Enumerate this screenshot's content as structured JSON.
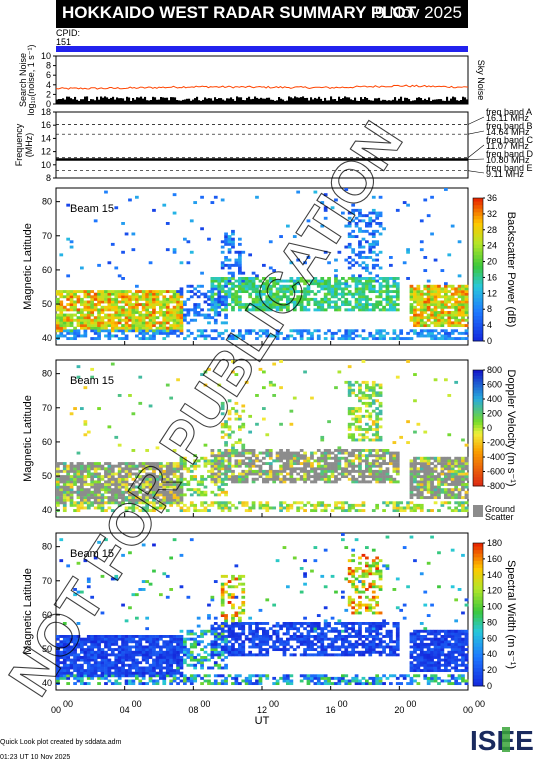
{
  "header": {
    "title": "HOKKAIDO WEST RADAR SUMMARY PLOT",
    "date": "9 Nov 2025",
    "cpid_label": "CPID:",
    "cpid_value": "151"
  },
  "colors": {
    "cpid_bar": "#2222ee",
    "noise_trace": "#ff4400",
    "ground_scatter": "#8c8c8c"
  },
  "noise_panel": {
    "ylabel": "Search Noise",
    "ylabel_sub": "log₁₀(noise, 1 s⁻¹)",
    "legend": "Sky Noise",
    "yticks": [
      "0",
      "2",
      "4",
      "6",
      "8",
      "10"
    ]
  },
  "freq_panel": {
    "ylabel": "Frequency",
    "ylabel_unit": "(MHz)",
    "yticks": [
      "8",
      "10",
      "12",
      "14",
      "16",
      "18"
    ],
    "bands": [
      {
        "name": "freq band A",
        "freq": "16.11 MHz"
      },
      {
        "name": "freq band B",
        "freq": "14.64 MHz"
      },
      {
        "name": "freq band C",
        "freq": "11.07 MHz"
      },
      {
        "name": "freq band D",
        "freq": "10.80 MHz"
      },
      {
        "name": "freq band E",
        "freq": "9.11 MHz"
      }
    ]
  },
  "panels": [
    {
      "beam": "Beam 15",
      "ylabel": "Magnetic Latitude",
      "colorbar_label": "Backscatter Power (dB)",
      "colorbar_ticks": [
        "0",
        "4",
        "8",
        "12",
        "16",
        "20",
        "24",
        "28",
        "32",
        "36"
      ]
    },
    {
      "beam": "Beam 15",
      "ylabel": "Magnetic Latitude",
      "colorbar_label": "Doppler Velocity (m s⁻¹)",
      "colorbar_ticks": [
        "-800",
        "-600",
        "-400",
        "-200",
        "0",
        "200",
        "400",
        "600",
        "800"
      ],
      "ground_label_1": "Ground",
      "ground_label_2": "Scatter"
    },
    {
      "beam": "Beam 15",
      "ylabel": "Magnetic Latitude",
      "colorbar_label": "Spectral Width (m s⁻¹)",
      "colorbar_ticks": [
        "0",
        "20",
        "40",
        "60",
        "80",
        "100",
        "120",
        "140",
        "160",
        "180"
      ]
    }
  ],
  "lat_ticks": [
    "40",
    "50",
    "60",
    "70",
    "80"
  ],
  "xaxis": {
    "label": "UT",
    "ticks": [
      "00",
      "04",
      "08",
      "12",
      "16",
      "20",
      "00"
    ],
    "tick_sup": "00"
  },
  "watermark": "NOT FOR PUBLICATION",
  "footer": {
    "line1": "Quick Look plot created by sddata.adm",
    "line2": "01:23 UT 10 Nov 2025",
    "logo": "ISEE"
  },
  "chart_data": [
    {
      "type": "line",
      "title": "Search Noise",
      "legend": [
        "Sky Noise"
      ],
      "x_range": [
        0,
        24
      ],
      "ylim": [
        0,
        10
      ],
      "series": [
        {
          "name": "Sky Noise",
          "x": [
            0,
            4,
            8,
            12,
            16,
            20,
            24
          ],
          "values": [
            3.2,
            3.3,
            3.6,
            3.5,
            3.4,
            3.8,
            3.5
          ]
        }
      ]
    },
    {
      "type": "line",
      "title": "Frequency",
      "ylim": [
        8,
        18
      ],
      "series": [
        {
          "name": "freq band D",
          "x": [
            0,
            24
          ],
          "values": [
            10.8,
            10.8
          ]
        }
      ]
    },
    {
      "type": "heatmap",
      "title": "Backscatter Power",
      "x_range": [
        0,
        24
      ],
      "ylim": [
        38,
        84
      ],
      "colorbar_range": [
        0,
        36
      ]
    },
    {
      "type": "heatmap",
      "title": "Doppler Velocity",
      "x_range": [
        0,
        24
      ],
      "ylim": [
        38,
        84
      ],
      "colorbar_range": [
        -800,
        800
      ]
    },
    {
      "type": "heatmap",
      "title": "Spectral Width",
      "x_range": [
        0,
        24
      ],
      "ylim": [
        38,
        84
      ],
      "colorbar_range": [
        0,
        180
      ]
    }
  ]
}
